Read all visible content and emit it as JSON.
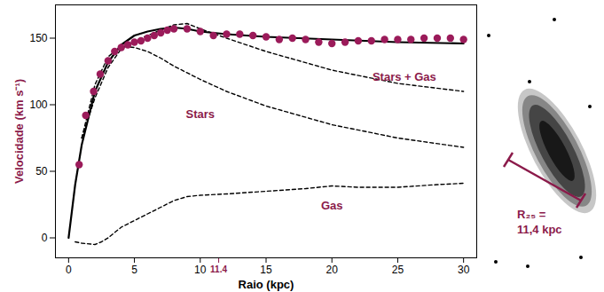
{
  "chart_data": {
    "type": "line",
    "x_label": "Raio (kpc)",
    "y_label": "Velocidade (km s⁻¹)",
    "xlim": [
      -1,
      31
    ],
    "ylim": [
      -15,
      175
    ],
    "xticks": [
      0,
      5,
      10,
      11.4,
      15,
      20,
      25,
      30
    ],
    "yticks": [
      0,
      50,
      100,
      150
    ],
    "grid": false,
    "series": [
      {
        "type": "line",
        "line_style": "dashed",
        "color": "#000000",
        "x": [
          0.5,
          1,
          2,
          2.5,
          3,
          4,
          5,
          6,
          7,
          8,
          9,
          10,
          12,
          15,
          18,
          20,
          22,
          25,
          28,
          30
        ],
        "values": [
          -3,
          -4,
          -5,
          -3,
          0,
          8,
          13,
          18,
          23,
          28,
          31,
          32,
          33,
          35,
          37,
          39,
          38,
          38,
          40,
          41
        ]
      },
      {
        "type": "line",
        "line_style": "dashed",
        "color": "#000000",
        "x": [
          1,
          2,
          3,
          4,
          5,
          6,
          7,
          8,
          10,
          12,
          15,
          20,
          25,
          30
        ],
        "values": [
          75,
          115,
          136,
          144,
          143,
          140,
          135,
          129,
          119,
          110,
          99,
          85,
          75,
          68
        ]
      },
      {
        "type": "line",
        "line_style": "dashed",
        "color": "#000000",
        "x": [
          1,
          2,
          3,
          4,
          5,
          6,
          7,
          8,
          9,
          10,
          12,
          15,
          20,
          25,
          30
        ],
        "values": [
          75,
          105,
          128,
          142,
          148,
          152,
          156,
          160,
          161,
          157,
          150,
          140,
          126,
          116,
          110
        ]
      },
      {
        "type": "line",
        "line_style": "solid",
        "color": "#000000",
        "x": [
          0,
          0.5,
          1,
          1.5,
          2,
          3,
          4,
          5,
          6,
          7,
          8,
          9,
          10,
          12,
          15,
          20,
          25,
          30
        ],
        "values": [
          0,
          40,
          70,
          90,
          110,
          132,
          145,
          152,
          155,
          157,
          158,
          157,
          155,
          153,
          151,
          149,
          147,
          146
        ]
      },
      {
        "type": "scatter",
        "marker": "circle",
        "color": "#9b1b5a",
        "x": [
          0.8,
          1.3,
          1.9,
          2.4,
          3,
          3.5,
          4,
          4.5,
          5,
          5.5,
          6,
          6.5,
          7,
          7.5,
          8,
          9,
          10,
          11,
          12,
          13,
          14,
          15,
          16,
          17,
          18,
          19,
          20,
          21,
          22,
          23,
          24,
          25,
          26,
          27,
          28,
          29,
          30
        ],
        "values": [
          55,
          92,
          110,
          123,
          133,
          140,
          143,
          145,
          147,
          148,
          150,
          152,
          154,
          156,
          157,
          157,
          155,
          152,
          153,
          153,
          152,
          151,
          149,
          150,
          149,
          147,
          146,
          147,
          148,
          148,
          149,
          149,
          149,
          150,
          150,
          150,
          149
        ]
      }
    ],
    "annotations": [
      {
        "text": "Stars + Gas",
        "x": 25.5,
        "y": 121
      },
      {
        "text": "Stars",
        "x": 10,
        "y": 93
      },
      {
        "text": "Gas",
        "x": 20,
        "y": 24
      }
    ],
    "inset_label": [
      "R₂₅ =",
      "11,4 kpc"
    ]
  }
}
